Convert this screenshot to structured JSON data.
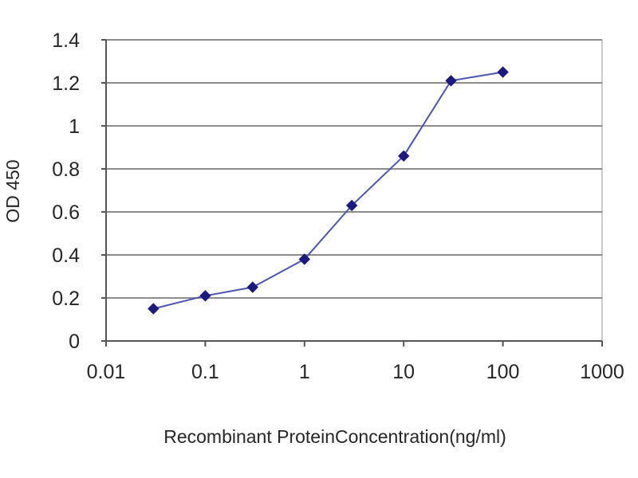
{
  "chart_data": {
    "type": "line",
    "title": "",
    "xlabel": "Recombinant ProteinConcentration(ng/ml)",
    "ylabel": "OD 450",
    "x_scale": "log",
    "xlim": [
      0.01,
      1000
    ],
    "ylim": [
      0,
      1.4
    ],
    "x_ticks": [
      0.01,
      0.1,
      1,
      10,
      100,
      1000
    ],
    "x_tick_labels": [
      "0.01",
      "0.1",
      "1",
      "10",
      "100",
      "1000"
    ],
    "y_ticks": [
      0,
      0.2,
      0.4,
      0.6,
      0.8,
      1,
      1.2,
      1.4
    ],
    "y_tick_labels": [
      "0",
      "0.2",
      "0.4",
      "0.6",
      "0.8",
      "1",
      "1.2",
      "1.4"
    ],
    "grid": "horizontal",
    "legend": "none",
    "series": [
      {
        "x": [
          0.03,
          0.1,
          0.3,
          1,
          3,
          10,
          30,
          100
        ],
        "y": [
          0.15,
          0.21,
          0.25,
          0.38,
          0.63,
          0.86,
          1.21,
          1.25
        ],
        "marker": "diamond",
        "color": "#1a1a80",
        "line_color": "#4a55b0"
      }
    ],
    "colors": {
      "gridline": "#8c8c8c",
      "axis": "#555555",
      "plot_border": "#999999"
    }
  }
}
